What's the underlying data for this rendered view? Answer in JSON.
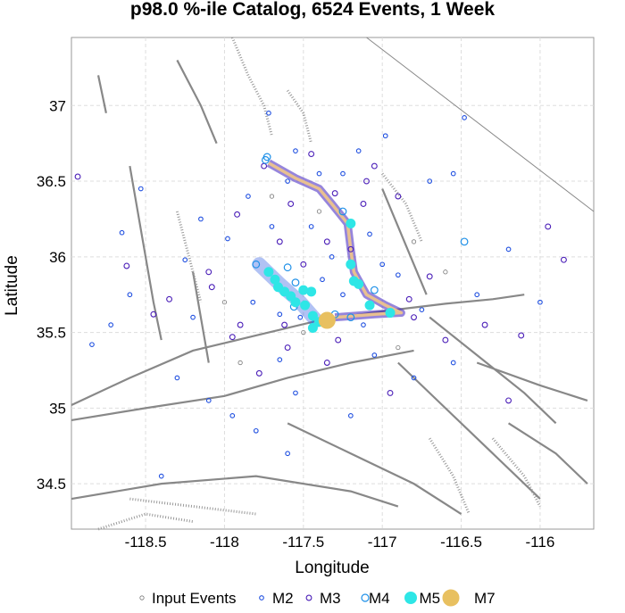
{
  "chart_data": {
    "type": "scatter",
    "title": "p98.0 %-ile Catalog, 6524 Events, 1 Week",
    "xlabel": "Longitude",
    "ylabel": "Latitude",
    "xlim": [
      -118.97,
      -115.66
    ],
    "ylim": [
      34.2,
      37.45
    ],
    "xticks": [
      -118.5,
      -118,
      -117.5,
      -117,
      -116.5,
      -116
    ],
    "xtick_labels": [
      "-118.5",
      "-118",
      "-117.5",
      "-117",
      "-116.5",
      "-116"
    ],
    "yticks": [
      34.5,
      35,
      35.5,
      36,
      36.5,
      37
    ],
    "ytick_labels": [
      "34.5",
      "35",
      "35.5",
      "36",
      "36.5",
      "37"
    ],
    "grid": true,
    "legend_position": "bottom",
    "legend": [
      "Input Events",
      "M2",
      "M3",
      "M4",
      "M5",
      "M7"
    ],
    "colors": {
      "input": "#777777",
      "m2": "#1f4fe0",
      "m3": "#4b1fb8",
      "m4": "#1e90e8",
      "m5": "#2ee6e6",
      "m7": "#e8c060",
      "fault": "#888888",
      "rupture": "#e8c090"
    },
    "series": [
      {
        "name": "M7",
        "points": [
          [
            -117.35,
            35.58
          ]
        ]
      },
      {
        "name": "M5",
        "points": [
          [
            -117.72,
            35.9
          ],
          [
            -117.68,
            35.85
          ],
          [
            -117.66,
            35.8
          ],
          [
            -117.62,
            35.77
          ],
          [
            -117.58,
            35.74
          ],
          [
            -117.55,
            35.7
          ],
          [
            -117.49,
            35.68
          ],
          [
            -117.44,
            35.61
          ],
          [
            -117.44,
            35.53
          ],
          [
            -117.4,
            35.57
          ],
          [
            -117.5,
            35.78
          ],
          [
            -117.2,
            35.95
          ],
          [
            -117.2,
            36.22
          ],
          [
            -117.18,
            35.84
          ],
          [
            -117.15,
            35.82
          ],
          [
            -117.08,
            35.68
          ],
          [
            -116.95,
            35.63
          ],
          [
            -117.45,
            35.77
          ]
        ]
      },
      {
        "name": "M4",
        "points": [
          [
            -117.73,
            36.66
          ],
          [
            -117.74,
            36.64
          ],
          [
            -117.6,
            35.93
          ],
          [
            -117.56,
            35.67
          ],
          [
            -117.55,
            35.83
          ],
          [
            -117.8,
            35.95
          ],
          [
            -116.48,
            36.1
          ],
          [
            -117.25,
            36.3
          ],
          [
            -117.05,
            35.78
          ],
          [
            -117.3,
            35.62
          ],
          [
            -117.2,
            35.6
          ],
          [
            -117.42,
            35.57
          ]
        ]
      },
      {
        "name": "M3",
        "points": [
          [
            -118.93,
            36.53
          ],
          [
            -118.62,
            35.94
          ],
          [
            -118.45,
            35.62
          ],
          [
            -118.35,
            35.72
          ],
          [
            -117.95,
            35.47
          ],
          [
            -118.1,
            35.9
          ],
          [
            -117.92,
            36.28
          ],
          [
            -117.65,
            36.1
          ],
          [
            -117.58,
            36.35
          ],
          [
            -117.45,
            36.68
          ],
          [
            -117.3,
            36.42
          ],
          [
            -117.05,
            36.6
          ],
          [
            -116.9,
            36.4
          ],
          [
            -116.7,
            35.87
          ],
          [
            -116.35,
            35.55
          ],
          [
            -116.12,
            35.48
          ],
          [
            -115.95,
            36.2
          ],
          [
            -115.85,
            35.98
          ],
          [
            -116.2,
            35.05
          ],
          [
            -116.95,
            35.1
          ],
          [
            -117.6,
            35.4
          ],
          [
            -117.78,
            35.23
          ],
          [
            -117.35,
            35.3
          ],
          [
            -118.08,
            35.8
          ],
          [
            -117.9,
            35.55
          ],
          [
            -117.1,
            36.5
          ],
          [
            -116.6,
            35.45
          ],
          [
            -116.8,
            35.6
          ],
          [
            -117.35,
            36.1
          ],
          [
            -117.5,
            35.95
          ],
          [
            -117.75,
            36.6
          ],
          [
            -117.28,
            35.45
          ],
          [
            -117.62,
            35.55
          ],
          [
            -116.83,
            35.72
          ],
          [
            -117.2,
            36.05
          ],
          [
            -117.12,
            36.35
          ]
        ]
      },
      {
        "name": "M2",
        "points": [
          [
            -118.84,
            35.42
          ],
          [
            -118.65,
            36.16
          ],
          [
            -118.53,
            36.45
          ],
          [
            -118.72,
            35.55
          ],
          [
            -118.6,
            35.75
          ],
          [
            -118.2,
            35.6
          ],
          [
            -118.3,
            35.2
          ],
          [
            -117.98,
            36.12
          ],
          [
            -118.15,
            36.25
          ],
          [
            -117.85,
            36.4
          ],
          [
            -117.72,
            36.95
          ],
          [
            -117.55,
            36.7
          ],
          [
            -117.25,
            36.55
          ],
          [
            -117.15,
            36.7
          ],
          [
            -116.98,
            36.8
          ],
          [
            -116.7,
            36.5
          ],
          [
            -116.55,
            36.55
          ],
          [
            -116.48,
            36.92
          ],
          [
            -116.2,
            36.05
          ],
          [
            -116.0,
            35.7
          ],
          [
            -116.4,
            35.75
          ],
          [
            -116.55,
            35.3
          ],
          [
            -116.8,
            35.2
          ],
          [
            -117.05,
            35.35
          ],
          [
            -117.55,
            35.1
          ],
          [
            -117.8,
            34.85
          ],
          [
            -117.95,
            34.95
          ],
          [
            -118.1,
            35.05
          ],
          [
            -117.65,
            35.32
          ],
          [
            -117.2,
            34.95
          ],
          [
            -118.4,
            34.55
          ],
          [
            -117.6,
            34.7
          ],
          [
            -117.0,
            35.95
          ],
          [
            -116.9,
            35.88
          ],
          [
            -117.45,
            36.2
          ],
          [
            -117.82,
            35.7
          ],
          [
            -118.25,
            35.98
          ],
          [
            -117.7,
            36.2
          ],
          [
            -117.38,
            35.85
          ],
          [
            -117.25,
            35.75
          ],
          [
            -117.12,
            35.55
          ],
          [
            -116.75,
            35.65
          ],
          [
            -117.52,
            35.6
          ],
          [
            -117.65,
            35.62
          ],
          [
            -117.32,
            36.0
          ],
          [
            -117.08,
            36.15
          ],
          [
            -117.6,
            36.5
          ],
          [
            -117.4,
            36.55
          ]
        ]
      },
      {
        "name": "Input Events",
        "points": [
          [
            -117.7,
            36.4
          ],
          [
            -117.4,
            36.3
          ],
          [
            -116.8,
            36.1
          ],
          [
            -116.6,
            35.9
          ],
          [
            -118.0,
            35.7
          ],
          [
            -117.9,
            35.3
          ],
          [
            -116.9,
            35.4
          ],
          [
            -117.5,
            35.5
          ]
        ]
      }
    ]
  }
}
